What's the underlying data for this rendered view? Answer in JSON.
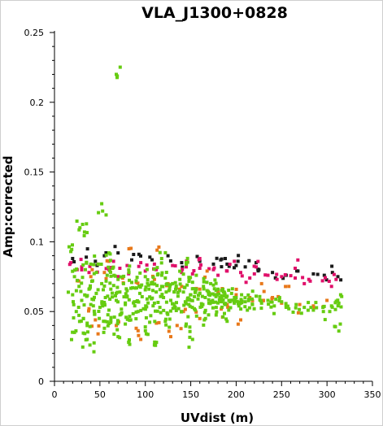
{
  "chart_data": {
    "type": "scatter",
    "title": "VLA_J1300+0828",
    "xlabel": "UVdist (m)",
    "ylabel": "Amp:corrected",
    "xlim": [
      0,
      350
    ],
    "ylim": [
      0,
      0.25
    ],
    "x_ticks": [
      "0",
      "50",
      "100",
      "150",
      "200",
      "250",
      "300",
      "350"
    ],
    "y_ticks": [
      "0",
      "0.05",
      "0.1",
      "0.15",
      "0.2",
      "0.25"
    ],
    "grid": false,
    "legend": "none",
    "colors": {
      "black": "#1a1a1a",
      "magenta": "#e0106a",
      "orange": "#e8781a",
      "green": "#66cc11"
    },
    "series": [
      {
        "color": "#1a1a1a",
        "points": [
          [
            20,
            0.088
          ],
          [
            35,
            0.089
          ],
          [
            55,
            0.09
          ],
          [
            70,
            0.092
          ],
          [
            85,
            0.087
          ],
          [
            105,
            0.089
          ],
          [
            125,
            0.09
          ],
          [
            140,
            0.085
          ],
          [
            160,
            0.086
          ],
          [
            175,
            0.084
          ],
          [
            188,
            0.088
          ],
          [
            190,
            0.084
          ],
          [
            200,
            0.083
          ],
          [
            210,
            0.082
          ],
          [
            225,
            0.08
          ],
          [
            240,
            0.078
          ],
          [
            255,
            0.076
          ],
          [
            268,
            0.079
          ],
          [
            285,
            0.077
          ],
          [
            297,
            0.076
          ],
          [
            306,
            0.078
          ],
          [
            312,
            0.075
          ],
          [
            202,
            0.086
          ],
          [
            222,
            0.085
          ],
          [
            183,
            0.087
          ],
          [
            93,
            0.091
          ],
          [
            45,
            0.086
          ]
        ]
      },
      {
        "color": "#e0106a",
        "points": [
          [
            18,
            0.085
          ],
          [
            30,
            0.082
          ],
          [
            48,
            0.084
          ],
          [
            65,
            0.086
          ],
          [
            80,
            0.083
          ],
          [
            95,
            0.085
          ],
          [
            110,
            0.084
          ],
          [
            130,
            0.083
          ],
          [
            145,
            0.082
          ],
          [
            160,
            0.081
          ],
          [
            175,
            0.08
          ],
          [
            190,
            0.079
          ],
          [
            205,
            0.078
          ],
          [
            220,
            0.077
          ],
          [
            235,
            0.076
          ],
          [
            250,
            0.075
          ],
          [
            265,
            0.074
          ],
          [
            280,
            0.073
          ],
          [
            295,
            0.072
          ],
          [
            310,
            0.073
          ],
          [
            25,
            0.08
          ],
          [
            60,
            0.08
          ],
          [
            100,
            0.079
          ],
          [
            140,
            0.078
          ],
          [
            180,
            0.076
          ],
          [
            215,
            0.074
          ],
          [
            245,
            0.073
          ],
          [
            275,
            0.07
          ],
          [
            305,
            0.068
          ],
          [
            160,
            0.088
          ],
          [
            198,
            0.086
          ],
          [
            222,
            0.082
          ],
          [
            265,
            0.081
          ],
          [
            38,
            0.078
          ],
          [
            72,
            0.081
          ],
          [
            112,
            0.08
          ],
          [
            152,
            0.077
          ]
        ]
      },
      {
        "color": "#e8781a",
        "points": [
          [
            25,
            0.072
          ],
          [
            40,
            0.075
          ],
          [
            55,
            0.078
          ],
          [
            75,
            0.074
          ],
          [
            90,
            0.071
          ],
          [
            110,
            0.073
          ],
          [
            125,
            0.07
          ],
          [
            140,
            0.068
          ],
          [
            160,
            0.066
          ],
          [
            180,
            0.064
          ],
          [
            200,
            0.062
          ],
          [
            215,
            0.06
          ],
          [
            230,
            0.058
          ],
          [
            250,
            0.056
          ],
          [
            270,
            0.055
          ],
          [
            285,
            0.054
          ],
          [
            300,
            0.058
          ],
          [
            45,
            0.044
          ],
          [
            68,
            0.04
          ],
          [
            90,
            0.038
          ],
          [
            115,
            0.042
          ],
          [
            135,
            0.04
          ],
          [
            160,
            0.045
          ],
          [
            185,
            0.046
          ],
          [
            205,
            0.044
          ],
          [
            48,
            0.034
          ],
          [
            95,
            0.03
          ],
          [
            128,
            0.032
          ],
          [
            60,
            0.086
          ],
          [
            82,
            0.095
          ],
          [
            113,
            0.094
          ],
          [
            168,
            0.079
          ],
          [
            228,
            0.07
          ],
          [
            258,
            0.068
          ],
          [
            38,
            0.052
          ],
          [
            142,
            0.05
          ],
          [
            190,
            0.055
          ],
          [
            240,
            0.06
          ]
        ]
      },
      {
        "color": "#66cc11",
        "points": [
          [
            68,
            0.22
          ],
          [
            53,
            0.122
          ],
          [
            28,
            0.11
          ],
          [
            33,
            0.107
          ],
          [
            18,
            0.093
          ],
          [
            20,
            0.062
          ],
          [
            22,
            0.075
          ],
          [
            24,
            0.05
          ],
          [
            27,
            0.068
          ],
          [
            30,
            0.058
          ],
          [
            32,
            0.045
          ],
          [
            34,
            0.08
          ],
          [
            36,
            0.04
          ],
          [
            38,
            0.066
          ],
          [
            40,
            0.055
          ],
          [
            42,
            0.072
          ],
          [
            44,
            0.048
          ],
          [
            46,
            0.063
          ],
          [
            48,
            0.084
          ],
          [
            50,
            0.053
          ],
          [
            52,
            0.07
          ],
          [
            54,
            0.043
          ],
          [
            56,
            0.06
          ],
          [
            58,
            0.076
          ],
          [
            60,
            0.051
          ],
          [
            62,
            0.066
          ],
          [
            64,
            0.081
          ],
          [
            66,
            0.046
          ],
          [
            68,
            0.058
          ],
          [
            70,
            0.073
          ],
          [
            72,
            0.064
          ],
          [
            74,
            0.049
          ],
          [
            76,
            0.07
          ],
          [
            78,
            0.055
          ],
          [
            80,
            0.061
          ],
          [
            82,
            0.078
          ],
          [
            84,
            0.044
          ],
          [
            86,
            0.067
          ],
          [
            88,
            0.057
          ],
          [
            90,
            0.072
          ],
          [
            92,
            0.05
          ],
          [
            94,
            0.063
          ],
          [
            96,
            0.069
          ],
          [
            98,
            0.052
          ],
          [
            100,
            0.075
          ],
          [
            102,
            0.059
          ],
          [
            104,
            0.066
          ],
          [
            106,
            0.047
          ],
          [
            108,
            0.071
          ],
          [
            110,
            0.056
          ],
          [
            112,
            0.064
          ],
          [
            114,
            0.077
          ],
          [
            116,
            0.053
          ],
          [
            118,
            0.068
          ],
          [
            120,
            0.06
          ],
          [
            122,
            0.074
          ],
          [
            124,
            0.049
          ],
          [
            126,
            0.065
          ],
          [
            128,
            0.058
          ],
          [
            130,
            0.07
          ],
          [
            132,
            0.054
          ],
          [
            134,
            0.067
          ],
          [
            136,
            0.061
          ],
          [
            138,
            0.073
          ],
          [
            140,
            0.05
          ],
          [
            142,
            0.064
          ],
          [
            144,
            0.057
          ],
          [
            146,
            0.069
          ],
          [
            148,
            0.055
          ],
          [
            150,
            0.062
          ],
          [
            152,
            0.071
          ],
          [
            154,
            0.052
          ],
          [
            156,
            0.066
          ],
          [
            158,
            0.059
          ],
          [
            160,
            0.063
          ],
          [
            162,
            0.054
          ],
          [
            164,
            0.068
          ],
          [
            166,
            0.06
          ],
          [
            168,
            0.065
          ],
          [
            170,
            0.056
          ],
          [
            172,
            0.07
          ],
          [
            174,
            0.058
          ],
          [
            176,
            0.062
          ],
          [
            178,
            0.053
          ],
          [
            180,
            0.066
          ],
          [
            182,
            0.06
          ],
          [
            184,
            0.057
          ],
          [
            186,
            0.064
          ],
          [
            188,
            0.055
          ],
          [
            190,
            0.061
          ],
          [
            192,
            0.058
          ],
          [
            195,
            0.063
          ],
          [
            198,
            0.056
          ],
          [
            200,
            0.06
          ],
          [
            203,
            0.054
          ],
          [
            206,
            0.062
          ],
          [
            210,
            0.057
          ],
          [
            214,
            0.059
          ],
          [
            218,
            0.055
          ],
          [
            222,
            0.061
          ],
          [
            228,
            0.056
          ],
          [
            235,
            0.058
          ],
          [
            242,
            0.054
          ],
          [
            250,
            0.057
          ],
          [
            258,
            0.052
          ],
          [
            266,
            0.055
          ],
          [
            275,
            0.053
          ],
          [
            285,
            0.051
          ],
          [
            296,
            0.05
          ],
          [
            305,
            0.054
          ],
          [
            313,
            0.036
          ],
          [
            315,
            0.062
          ],
          [
            313,
            0.056
          ],
          [
            22,
            0.035
          ],
          [
            36,
            0.03
          ],
          [
            55,
            0.038
          ],
          [
            78,
            0.041
          ],
          [
            100,
            0.039
          ],
          [
            122,
            0.043
          ],
          [
            145,
            0.041
          ],
          [
            165,
            0.044
          ],
          [
            190,
            0.043
          ],
          [
            39,
            0.026
          ],
          [
            82,
            0.028
          ],
          [
            152,
            0.03
          ],
          [
            110,
            0.026
          ],
          [
            70,
            0.032
          ],
          [
            60,
            0.092
          ],
          [
            40,
            0.084
          ],
          [
            118,
            0.088
          ],
          [
            145,
            0.085
          ]
        ]
      }
    ]
  }
}
